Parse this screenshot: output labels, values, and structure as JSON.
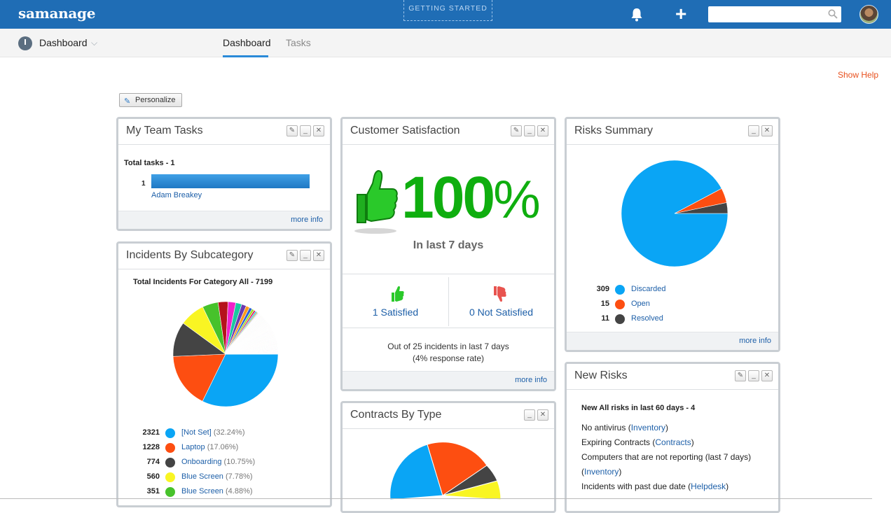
{
  "topbar": {
    "logo": "samanage",
    "getting_started": "GETTING STARTED",
    "search_placeholder": "",
    "colors": {
      "bar": "#1f6db5"
    }
  },
  "subnav": {
    "title": "Dashboard",
    "tabs": [
      {
        "label": "Dashboard",
        "active": true
      },
      {
        "label": "Tasks",
        "active": false
      }
    ]
  },
  "show_help": "Show Help",
  "personalize": "Personalize",
  "team_tasks": {
    "title": "My Team Tasks",
    "total": "Total tasks - 1",
    "rows": [
      {
        "count": "1",
        "name": "Adam Breakey",
        "fraction": 1.0
      }
    ],
    "more": "more info"
  },
  "satisfaction": {
    "title": "Customer Satisfaction",
    "percent": "100",
    "percent_sign": "%",
    "period": "In last 7 days",
    "satisfied": "1 Satisfied",
    "not_satisfied": "0 Not Satisfied",
    "summary": "Out of 25 incidents in last 7 days",
    "rate": "(4% response rate)",
    "more": "more info"
  },
  "risks": {
    "title": "Risks Summary",
    "items": [
      {
        "count": "309",
        "label": "Discarded",
        "color": "#0aa5f5"
      },
      {
        "count": "15",
        "label": "Open",
        "color": "#fd4e11"
      },
      {
        "count": "11",
        "label": "Resolved",
        "color": "#444444"
      }
    ],
    "more": "more info"
  },
  "incidents": {
    "title": "Incidents By Subcategory",
    "subtitle": "Total Incidents For Category All - 7199",
    "items": [
      {
        "count": "2321",
        "label": "[Not Set]",
        "pct": "(32.24%)",
        "color": "#0aa5f5"
      },
      {
        "count": "1228",
        "label": "Laptop",
        "pct": "(17.06%)",
        "color": "#fd4e11"
      },
      {
        "count": "774",
        "label": "Onboarding",
        "pct": "(10.75%)",
        "color": "#444444"
      },
      {
        "count": "560",
        "label": "Blue Screen",
        "pct": "(7.78%)",
        "color": "#f9f523"
      },
      {
        "count": "351",
        "label": "Blue Screen",
        "pct": "(4.88%)",
        "color": "#47c22b"
      }
    ]
  },
  "new_risks": {
    "title": "New Risks",
    "subtitle": "New All risks in last 60 days - 4",
    "items": [
      {
        "text": "No antivirus (",
        "link": "Inventory",
        "tail": ")"
      },
      {
        "text": "Expiring Contracts (",
        "link": "Contracts",
        "tail": ")"
      },
      {
        "text": "Computers that are not reporting (last 7 days)",
        "link": "",
        "tail": ""
      },
      {
        "text": "(",
        "link": "Inventory",
        "tail": ")"
      },
      {
        "text": "Incidents with past due date (",
        "link": "Helpdesk",
        "tail": ")"
      }
    ]
  },
  "contracts": {
    "title": "Contracts By Type"
  },
  "chart_data": [
    {
      "type": "pie",
      "title": "Risks Summary",
      "categories": [
        "Discarded",
        "Open",
        "Resolved"
      ],
      "values": [
        309,
        15,
        11
      ],
      "colors": [
        "#0aa5f5",
        "#fd4e11",
        "#444444"
      ]
    },
    {
      "type": "pie",
      "title": "Total Incidents For Category All - 7199",
      "categories": [
        "[Not Set]",
        "Laptop",
        "Onboarding",
        "Blue Screen",
        "Blue Screen"
      ],
      "values": [
        2321,
        1228,
        774,
        560,
        351
      ],
      "colors": [
        "#0aa5f5",
        "#fd4e11",
        "#444444",
        "#f9f523",
        "#47c22b"
      ]
    }
  ]
}
